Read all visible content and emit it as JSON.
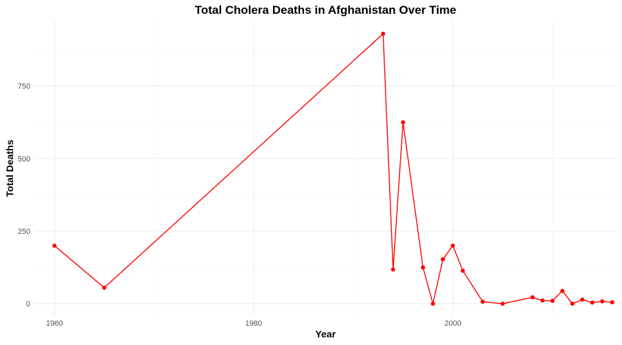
{
  "chart_data": {
    "type": "line",
    "title": "Total Cholera Deaths in Afghanistan Over Time",
    "xlabel": "Year",
    "ylabel": "Total Deaths",
    "xlim": [
      1958,
      2016.5
    ],
    "ylim": [
      -40,
      975
    ],
    "x_ticks": [
      1960,
      1980,
      2000
    ],
    "y_ticks": [
      0,
      250,
      500,
      750
    ],
    "grid": true,
    "series": [
      {
        "color": "#ff0000",
        "points": [
          {
            "x": 1960,
            "y": 200
          },
          {
            "x": 1965,
            "y": 55
          },
          {
            "x": 1993,
            "y": 930
          },
          {
            "x": 1994,
            "y": 118
          },
          {
            "x": 1995,
            "y": 625
          },
          {
            "x": 1997,
            "y": 125
          },
          {
            "x": 1998,
            "y": 0
          },
          {
            "x": 1999,
            "y": 153
          },
          {
            "x": 2000,
            "y": 200
          },
          {
            "x": 2001,
            "y": 114
          },
          {
            "x": 2003,
            "y": 7
          },
          {
            "x": 2005,
            "y": 0
          },
          {
            "x": 2008,
            "y": 22
          },
          {
            "x": 2009,
            "y": 11
          },
          {
            "x": 2010,
            "y": 10
          },
          {
            "x": 2011,
            "y": 44
          },
          {
            "x": 2012,
            "y": 0
          },
          {
            "x": 2013,
            "y": 14
          },
          {
            "x": 2014,
            "y": 4
          },
          {
            "x": 2015,
            "y": 8
          },
          {
            "x": 2016,
            "y": 5
          }
        ]
      }
    ]
  }
}
